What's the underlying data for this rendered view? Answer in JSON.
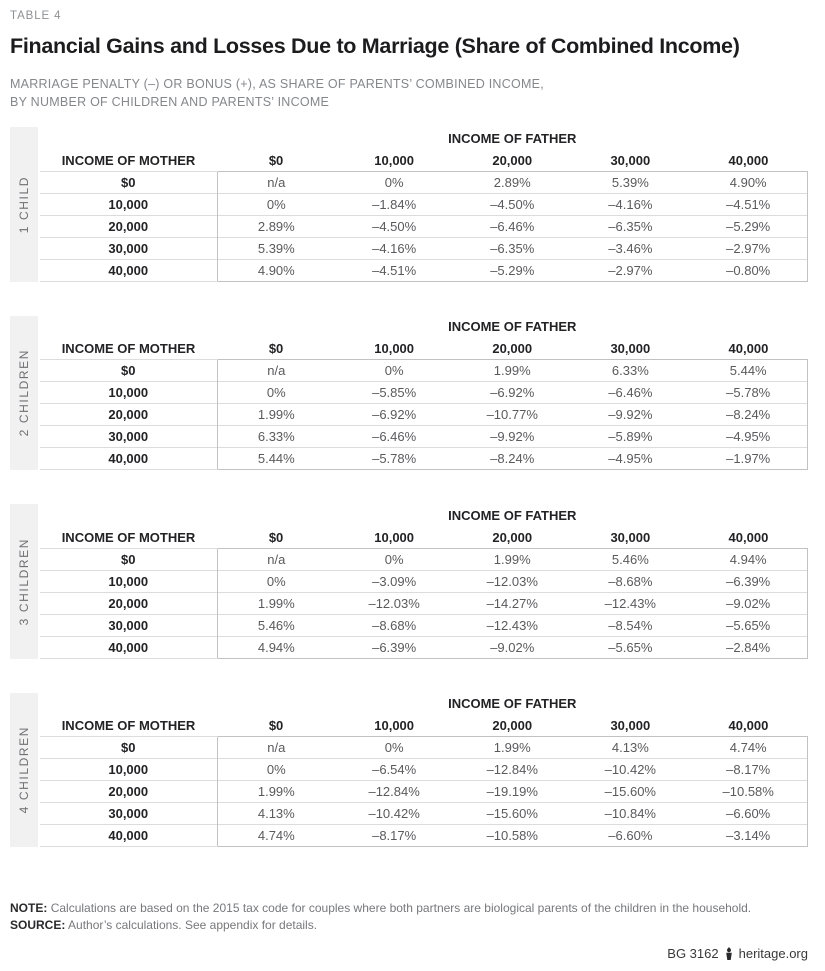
{
  "header": {
    "kicker": "TABLE 4",
    "title": "Financial Gains and Losses Due to Marriage (Share of Combined Income)",
    "subtitle_line1": "MARRIAGE PENALTY (–) OR BONUS (+), AS SHARE OF PARENTS’ COMBINED INCOME,",
    "subtitle_line2": "BY NUMBER OF CHILDREN AND PARENTS’ INCOME"
  },
  "table_common": {
    "father_header": "INCOME OF FATHER",
    "mother_header": "INCOME OF MOTHER",
    "income_columns": [
      "$0",
      "10,000",
      "20,000",
      "30,000",
      "40,000"
    ],
    "row_labels": [
      "$0",
      "10,000",
      "20,000",
      "30,000",
      "40,000"
    ]
  },
  "tables": [
    {
      "group_label": "1 CHILD",
      "rows": [
        [
          "n/a",
          "0%",
          "2.89%",
          "5.39%",
          "4.90%"
        ],
        [
          "0%",
          "–1.84%",
          "–4.50%",
          "–4.16%",
          "–4.51%"
        ],
        [
          "2.89%",
          "–4.50%",
          "–6.46%",
          "–6.35%",
          "–5.29%"
        ],
        [
          "5.39%",
          "–4.16%",
          "–6.35%",
          "–3.46%",
          "–2.97%"
        ],
        [
          "4.90%",
          "–4.51%",
          "–5.29%",
          "–2.97%",
          "–0.80%"
        ]
      ]
    },
    {
      "group_label": "2 CHILDREN",
      "rows": [
        [
          "n/a",
          "0%",
          "1.99%",
          "6.33%",
          "5.44%"
        ],
        [
          "0%",
          "–5.85%",
          "–6.92%",
          "–6.46%",
          "–5.78%"
        ],
        [
          "1.99%",
          "–6.92%",
          "–10.77%",
          "–9.92%",
          "–8.24%"
        ],
        [
          "6.33%",
          "–6.46%",
          "–9.92%",
          "–5.89%",
          "–4.95%"
        ],
        [
          "5.44%",
          "–5.78%",
          "–8.24%",
          "–4.95%",
          "–1.97%"
        ]
      ]
    },
    {
      "group_label": "3 CHILDREN",
      "rows": [
        [
          "n/a",
          "0%",
          "1.99%",
          "5.46%",
          "4.94%"
        ],
        [
          "0%",
          "–3.09%",
          "–12.03%",
          "–8.68%",
          "–6.39%"
        ],
        [
          "1.99%",
          "–12.03%",
          "–14.27%",
          "–12.43%",
          "–9.02%"
        ],
        [
          "5.46%",
          "–8.68%",
          "–12.43%",
          "–8.54%",
          "–5.65%"
        ],
        [
          "4.94%",
          "–6.39%",
          "–9.02%",
          "–5.65%",
          "–2.84%"
        ]
      ]
    },
    {
      "group_label": "4 CHILDREN",
      "rows": [
        [
          "n/a",
          "0%",
          "1.99%",
          "4.13%",
          "4.74%"
        ],
        [
          "0%",
          "–6.54%",
          "–12.84%",
          "–10.42%",
          "–8.17%"
        ],
        [
          "1.99%",
          "–12.84%",
          "–19.19%",
          "–15.60%",
          "–10.58%"
        ],
        [
          "4.13%",
          "–10.42%",
          "–15.60%",
          "–10.84%",
          "–6.60%"
        ],
        [
          "4.74%",
          "–8.17%",
          "–10.58%",
          "–6.60%",
          "–3.14%"
        ]
      ]
    }
  ],
  "footer": {
    "note_label": "NOTE:",
    "note_text": "Calculations are based on the 2015 tax code for couples where both partners are biological parents of the children in the household.",
    "source_label": "SOURCE:",
    "source_text": "Author’s calculations. See appendix for details.",
    "credit_code": "BG 3162",
    "credit_site": "heritage.org",
    "logo_icon": "heritage-torch"
  },
  "colors": {
    "title_text": "#1c1c1e",
    "muted_text": "#85878b",
    "data_text": "#5a5a5d",
    "group_band_background": "#f1f1f2",
    "data_box_border": "#c2c2c4",
    "row_hairline": "#dcdcdd"
  }
}
